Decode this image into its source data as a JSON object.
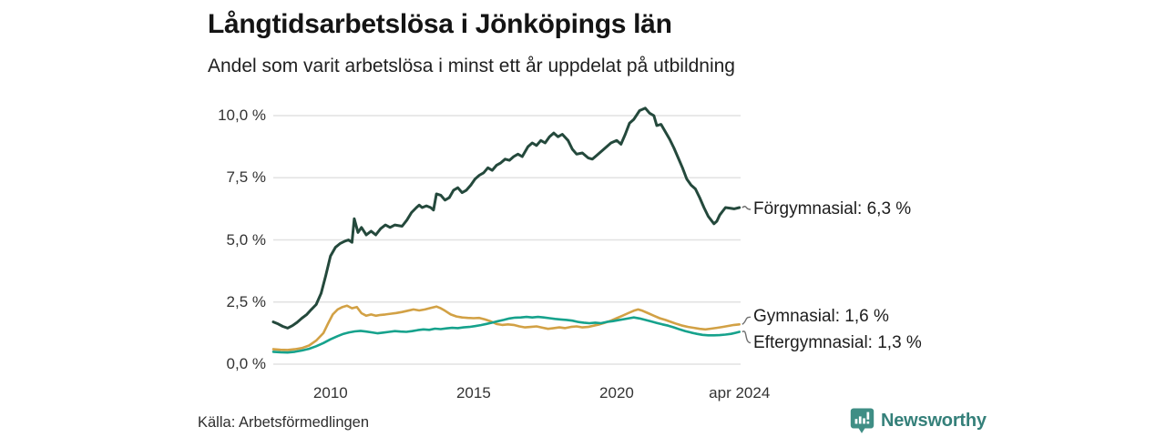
{
  "footer": {
    "source": "Källa: Arbetsförmedlingen",
    "brand": "Newsworthy",
    "brand_text_color": "#35807A",
    "brand_icon_color": "#3F8E85"
  },
  "chart_data": {
    "type": "line",
    "title": "Långtidsarbetslösa i Jönköpings län",
    "subtitle": "Andel som varit arbetslösa i minst ett år uppdelat på utbildning",
    "unit": "%",
    "grid": "horizontal",
    "legend_position": "end-of-line",
    "colors": {
      "grid": "#e2e2e2",
      "connector": "#6f6f6f"
    },
    "y_axis": {
      "range": [
        0,
        10.5
      ],
      "ticks": [
        {
          "label": "0,0 %",
          "value": 0
        },
        {
          "label": "2,5 %",
          "value": 2.5
        },
        {
          "label": "5,0 %",
          "value": 5
        },
        {
          "label": "7,5 %",
          "value": 7.5
        },
        {
          "label": "10,0 %",
          "value": 10
        }
      ]
    },
    "x_axis": {
      "range": [
        2008.0,
        2024.33
      ],
      "ticks": [
        {
          "label": "2010",
          "year": 2010
        },
        {
          "label": "2015",
          "year": 2015
        },
        {
          "label": "2020",
          "year": 2020
        },
        {
          "label": "apr 2024",
          "year": 2024.29
        }
      ]
    },
    "series": [
      {
        "name": "Förgymnasial",
        "end_label": "Förgymnasial: 6,3 %",
        "last_value": 6.3,
        "color": "#24493C",
        "width": 3,
        "points": [
          [
            2008.0,
            1.7
          ],
          [
            2008.17,
            1.62
          ],
          [
            2008.33,
            1.52
          ],
          [
            2008.5,
            1.45
          ],
          [
            2008.67,
            1.55
          ],
          [
            2008.83,
            1.68
          ],
          [
            2009.0,
            1.85
          ],
          [
            2009.17,
            2.0
          ],
          [
            2009.33,
            2.2
          ],
          [
            2009.5,
            2.4
          ],
          [
            2009.67,
            2.85
          ],
          [
            2009.83,
            3.55
          ],
          [
            2010.0,
            4.35
          ],
          [
            2010.17,
            4.7
          ],
          [
            2010.33,
            4.85
          ],
          [
            2010.5,
            4.95
          ],
          [
            2010.63,
            5.0
          ],
          [
            2010.75,
            4.9
          ],
          [
            2010.83,
            5.85
          ],
          [
            2010.96,
            5.3
          ],
          [
            2011.08,
            5.5
          ],
          [
            2011.25,
            5.2
          ],
          [
            2011.42,
            5.35
          ],
          [
            2011.58,
            5.2
          ],
          [
            2011.75,
            5.45
          ],
          [
            2011.92,
            5.6
          ],
          [
            2012.08,
            5.5
          ],
          [
            2012.25,
            5.6
          ],
          [
            2012.5,
            5.55
          ],
          [
            2012.67,
            5.8
          ],
          [
            2012.83,
            6.1
          ],
          [
            2013.0,
            6.3
          ],
          [
            2013.1,
            6.4
          ],
          [
            2013.2,
            6.3
          ],
          [
            2013.35,
            6.37
          ],
          [
            2013.5,
            6.3
          ],
          [
            2013.6,
            6.2
          ],
          [
            2013.7,
            6.85
          ],
          [
            2013.85,
            6.8
          ],
          [
            2014.0,
            6.6
          ],
          [
            2014.15,
            6.7
          ],
          [
            2014.3,
            7.0
          ],
          [
            2014.45,
            7.1
          ],
          [
            2014.6,
            6.9
          ],
          [
            2014.75,
            7.0
          ],
          [
            2014.9,
            7.2
          ],
          [
            2015.05,
            7.45
          ],
          [
            2015.2,
            7.6
          ],
          [
            2015.35,
            7.7
          ],
          [
            2015.5,
            7.9
          ],
          [
            2015.65,
            7.8
          ],
          [
            2015.8,
            8.0
          ],
          [
            2015.95,
            8.1
          ],
          [
            2016.1,
            8.25
          ],
          [
            2016.25,
            8.2
          ],
          [
            2016.4,
            8.35
          ],
          [
            2016.55,
            8.45
          ],
          [
            2016.7,
            8.35
          ],
          [
            2016.9,
            8.75
          ],
          [
            2017.05,
            8.9
          ],
          [
            2017.2,
            8.8
          ],
          [
            2017.35,
            9.0
          ],
          [
            2017.5,
            8.9
          ],
          [
            2017.65,
            9.15
          ],
          [
            2017.8,
            9.3
          ],
          [
            2017.95,
            9.15
          ],
          [
            2018.1,
            9.25
          ],
          [
            2018.3,
            9.0
          ],
          [
            2018.45,
            8.65
          ],
          [
            2018.6,
            8.45
          ],
          [
            2018.8,
            8.5
          ],
          [
            2019.0,
            8.3
          ],
          [
            2019.15,
            8.25
          ],
          [
            2019.3,
            8.4
          ],
          [
            2019.5,
            8.6
          ],
          [
            2019.65,
            8.75
          ],
          [
            2019.8,
            8.9
          ],
          [
            2020.0,
            9.0
          ],
          [
            2020.15,
            8.85
          ],
          [
            2020.3,
            9.25
          ],
          [
            2020.45,
            9.7
          ],
          [
            2020.6,
            9.85
          ],
          [
            2020.8,
            10.2
          ],
          [
            2021.0,
            10.3
          ],
          [
            2021.15,
            10.1
          ],
          [
            2021.3,
            10.0
          ],
          [
            2021.4,
            9.6
          ],
          [
            2021.55,
            9.65
          ],
          [
            2021.7,
            9.35
          ],
          [
            2021.85,
            9.05
          ],
          [
            2022.0,
            8.7
          ],
          [
            2022.15,
            8.3
          ],
          [
            2022.3,
            7.9
          ],
          [
            2022.45,
            7.45
          ],
          [
            2022.6,
            7.2
          ],
          [
            2022.75,
            7.05
          ],
          [
            2022.9,
            6.7
          ],
          [
            2023.05,
            6.3
          ],
          [
            2023.2,
            5.95
          ],
          [
            2023.3,
            5.8
          ],
          [
            2023.4,
            5.65
          ],
          [
            2023.5,
            5.75
          ],
          [
            2023.6,
            6.0
          ],
          [
            2023.7,
            6.15
          ],
          [
            2023.8,
            6.3
          ],
          [
            2023.95,
            6.28
          ],
          [
            2024.1,
            6.25
          ],
          [
            2024.29,
            6.3
          ]
        ]
      },
      {
        "name": "Gymnasial",
        "end_label": "Gymnasial: 1,6 %",
        "last_value": 1.6,
        "color": "#D2A145",
        "width": 2.6,
        "points": [
          [
            2008.0,
            0.6
          ],
          [
            2008.25,
            0.58
          ],
          [
            2008.5,
            0.57
          ],
          [
            2008.75,
            0.6
          ],
          [
            2009.0,
            0.65
          ],
          [
            2009.25,
            0.75
          ],
          [
            2009.5,
            0.95
          ],
          [
            2009.75,
            1.25
          ],
          [
            2009.92,
            1.65
          ],
          [
            2010.08,
            2.0
          ],
          [
            2010.25,
            2.2
          ],
          [
            2010.42,
            2.3
          ],
          [
            2010.58,
            2.35
          ],
          [
            2010.75,
            2.25
          ],
          [
            2010.92,
            2.3
          ],
          [
            2011.08,
            2.05
          ],
          [
            2011.25,
            1.95
          ],
          [
            2011.42,
            2.0
          ],
          [
            2011.58,
            1.95
          ],
          [
            2011.75,
            1.98
          ],
          [
            2011.92,
            2.0
          ],
          [
            2012.1,
            2.03
          ],
          [
            2012.3,
            2.06
          ],
          [
            2012.5,
            2.1
          ],
          [
            2012.7,
            2.15
          ],
          [
            2012.9,
            2.2
          ],
          [
            2013.1,
            2.16
          ],
          [
            2013.3,
            2.2
          ],
          [
            2013.5,
            2.26
          ],
          [
            2013.7,
            2.32
          ],
          [
            2013.85,
            2.25
          ],
          [
            2014.0,
            2.15
          ],
          [
            2014.2,
            2.0
          ],
          [
            2014.4,
            1.92
          ],
          [
            2014.6,
            1.88
          ],
          [
            2014.8,
            1.86
          ],
          [
            2015.0,
            1.85
          ],
          [
            2015.2,
            1.86
          ],
          [
            2015.4,
            1.8
          ],
          [
            2015.6,
            1.72
          ],
          [
            2015.8,
            1.62
          ],
          [
            2016.0,
            1.58
          ],
          [
            2016.2,
            1.6
          ],
          [
            2016.4,
            1.58
          ],
          [
            2016.6,
            1.52
          ],
          [
            2016.8,
            1.48
          ],
          [
            2017.0,
            1.5
          ],
          [
            2017.2,
            1.52
          ],
          [
            2017.4,
            1.47
          ],
          [
            2017.6,
            1.42
          ],
          [
            2017.8,
            1.45
          ],
          [
            2018.0,
            1.48
          ],
          [
            2018.2,
            1.45
          ],
          [
            2018.4,
            1.5
          ],
          [
            2018.6,
            1.52
          ],
          [
            2018.8,
            1.48
          ],
          [
            2019.0,
            1.5
          ],
          [
            2019.2,
            1.55
          ],
          [
            2019.4,
            1.6
          ],
          [
            2019.6,
            1.67
          ],
          [
            2019.8,
            1.75
          ],
          [
            2020.0,
            1.85
          ],
          [
            2020.2,
            1.95
          ],
          [
            2020.4,
            2.05
          ],
          [
            2020.6,
            2.15
          ],
          [
            2020.75,
            2.2
          ],
          [
            2020.9,
            2.15
          ],
          [
            2021.1,
            2.05
          ],
          [
            2021.3,
            1.95
          ],
          [
            2021.5,
            1.85
          ],
          [
            2021.7,
            1.78
          ],
          [
            2021.9,
            1.7
          ],
          [
            2022.1,
            1.62
          ],
          [
            2022.3,
            1.55
          ],
          [
            2022.5,
            1.5
          ],
          [
            2022.7,
            1.46
          ],
          [
            2022.9,
            1.42
          ],
          [
            2023.1,
            1.4
          ],
          [
            2023.3,
            1.43
          ],
          [
            2023.5,
            1.46
          ],
          [
            2023.7,
            1.5
          ],
          [
            2023.9,
            1.54
          ],
          [
            2024.1,
            1.58
          ],
          [
            2024.29,
            1.6
          ]
        ]
      },
      {
        "name": "Eftergymnasial",
        "end_label": "Eftergymnasial: 1,3 %",
        "last_value": 1.3,
        "color": "#16A28C",
        "width": 2.6,
        "points": [
          [
            2008.0,
            0.5
          ],
          [
            2008.25,
            0.48
          ],
          [
            2008.5,
            0.47
          ],
          [
            2008.75,
            0.5
          ],
          [
            2009.0,
            0.55
          ],
          [
            2009.25,
            0.62
          ],
          [
            2009.5,
            0.72
          ],
          [
            2009.75,
            0.85
          ],
          [
            2010.0,
            1.0
          ],
          [
            2010.25,
            1.13
          ],
          [
            2010.45,
            1.22
          ],
          [
            2010.65,
            1.28
          ],
          [
            2010.85,
            1.32
          ],
          [
            2011.05,
            1.34
          ],
          [
            2011.25,
            1.31
          ],
          [
            2011.45,
            1.28
          ],
          [
            2011.65,
            1.24
          ],
          [
            2011.85,
            1.27
          ],
          [
            2012.05,
            1.3
          ],
          [
            2012.25,
            1.33
          ],
          [
            2012.45,
            1.31
          ],
          [
            2012.65,
            1.3
          ],
          [
            2012.85,
            1.33
          ],
          [
            2013.05,
            1.37
          ],
          [
            2013.25,
            1.4
          ],
          [
            2013.45,
            1.38
          ],
          [
            2013.65,
            1.43
          ],
          [
            2013.85,
            1.41
          ],
          [
            2014.05,
            1.44
          ],
          [
            2014.25,
            1.46
          ],
          [
            2014.45,
            1.45
          ],
          [
            2014.65,
            1.48
          ],
          [
            2014.85,
            1.5
          ],
          [
            2015.05,
            1.53
          ],
          [
            2015.25,
            1.57
          ],
          [
            2015.45,
            1.62
          ],
          [
            2015.65,
            1.67
          ],
          [
            2015.85,
            1.73
          ],
          [
            2016.05,
            1.78
          ],
          [
            2016.25,
            1.84
          ],
          [
            2016.45,
            1.87
          ],
          [
            2016.65,
            1.88
          ],
          [
            2016.85,
            1.9
          ],
          [
            2017.05,
            1.88
          ],
          [
            2017.25,
            1.9
          ],
          [
            2017.45,
            1.88
          ],
          [
            2017.65,
            1.85
          ],
          [
            2017.85,
            1.82
          ],
          [
            2018.05,
            1.8
          ],
          [
            2018.25,
            1.78
          ],
          [
            2018.45,
            1.75
          ],
          [
            2018.65,
            1.7
          ],
          [
            2018.85,
            1.67
          ],
          [
            2019.05,
            1.65
          ],
          [
            2019.25,
            1.67
          ],
          [
            2019.45,
            1.65
          ],
          [
            2019.65,
            1.7
          ],
          [
            2019.85,
            1.73
          ],
          [
            2020.05,
            1.77
          ],
          [
            2020.25,
            1.81
          ],
          [
            2020.45,
            1.85
          ],
          [
            2020.6,
            1.88
          ],
          [
            2020.8,
            1.84
          ],
          [
            2021.0,
            1.78
          ],
          [
            2021.2,
            1.72
          ],
          [
            2021.4,
            1.66
          ],
          [
            2021.6,
            1.6
          ],
          [
            2021.8,
            1.55
          ],
          [
            2022.0,
            1.48
          ],
          [
            2022.2,
            1.4
          ],
          [
            2022.4,
            1.33
          ],
          [
            2022.6,
            1.27
          ],
          [
            2022.8,
            1.22
          ],
          [
            2023.0,
            1.18
          ],
          [
            2023.2,
            1.16
          ],
          [
            2023.4,
            1.16
          ],
          [
            2023.6,
            1.17
          ],
          [
            2023.8,
            1.19
          ],
          [
            2024.0,
            1.22
          ],
          [
            2024.15,
            1.26
          ],
          [
            2024.29,
            1.3
          ]
        ]
      }
    ]
  }
}
